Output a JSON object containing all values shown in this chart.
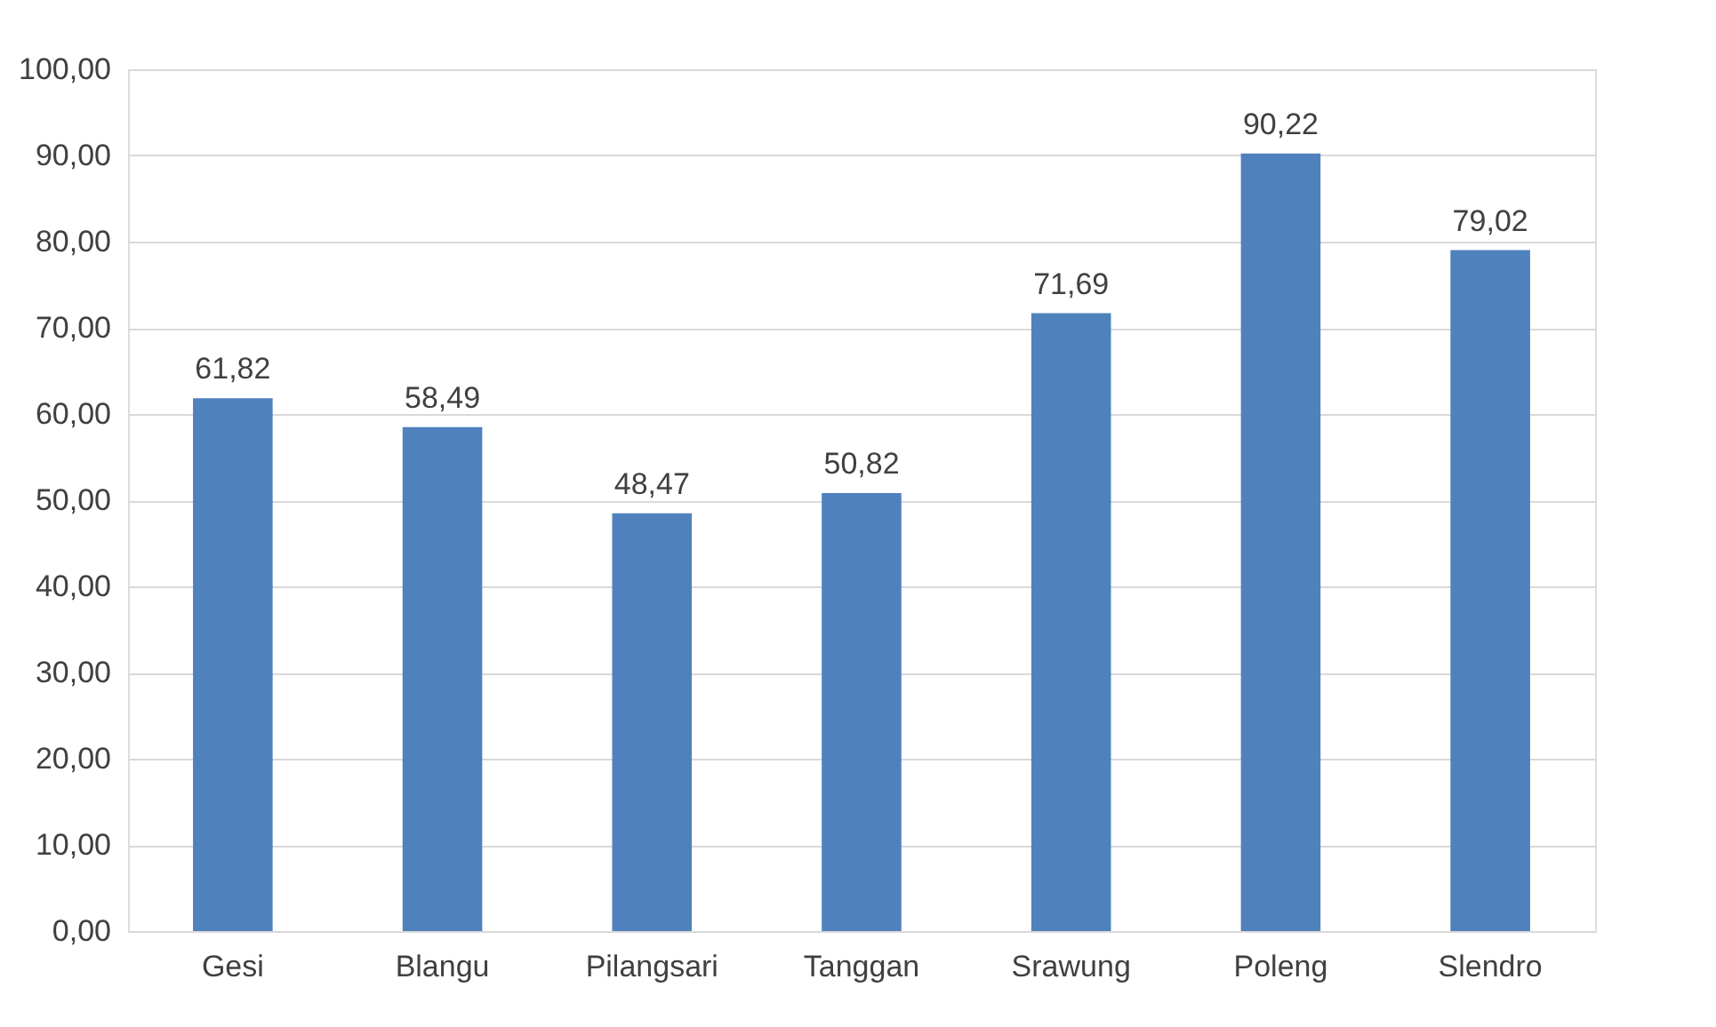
{
  "chart_data": {
    "type": "bar",
    "categories": [
      "Gesi",
      "Blangu",
      "Pilangsari",
      "Tanggan",
      "Srawung",
      "Poleng",
      "Slendro"
    ],
    "values": [
      61.82,
      58.49,
      48.47,
      50.82,
      71.69,
      90.22,
      79.02
    ],
    "value_labels": [
      "61,82",
      "58,49",
      "48,47",
      "50,82",
      "71,69",
      "90,22",
      "79,02"
    ],
    "color": "#4f81bd",
    "ylim": [
      0,
      100
    ],
    "yticks": [
      {
        "value": 0,
        "label": "0,00"
      },
      {
        "value": 10,
        "label": "10,00"
      },
      {
        "value": 20,
        "label": "20,00"
      },
      {
        "value": 30,
        "label": "30,00"
      },
      {
        "value": 40,
        "label": "40,00"
      },
      {
        "value": 50,
        "label": "50,00"
      },
      {
        "value": 60,
        "label": "60,00"
      },
      {
        "value": 70,
        "label": "70,00"
      },
      {
        "value": 80,
        "label": "80,00"
      },
      {
        "value": 90,
        "label": "90,00"
      },
      {
        "value": 100,
        "label": "100,00"
      }
    ],
    "grid": "y"
  }
}
